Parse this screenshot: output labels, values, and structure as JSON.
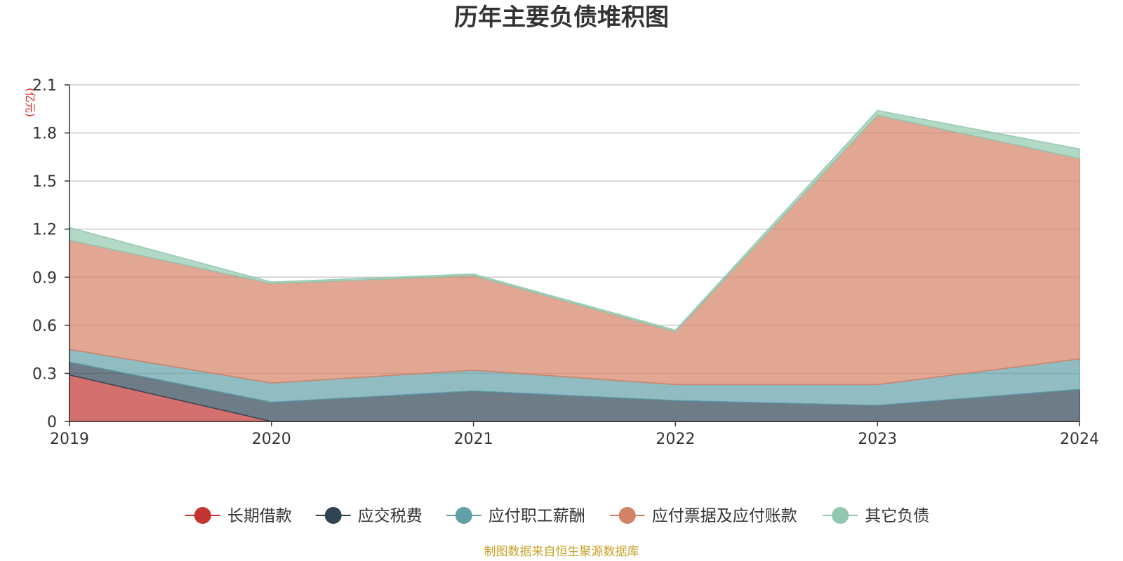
{
  "colors": {
    "title": "#333333",
    "unit": "#e02020",
    "source": "#c8a028",
    "grid": "#cccccc",
    "axis": "#333333"
  },
  "chart_data": {
    "type": "area",
    "stacked": true,
    "title": "历年主要负债堆积图",
    "ylabel": "(亿元)",
    "xlabel": "",
    "categories": [
      "2019",
      "2020",
      "2021",
      "2022",
      "2023",
      "2024"
    ],
    "ylim": [
      0,
      2.1
    ],
    "yticks": [
      "0",
      "0.3",
      "0.6",
      "0.9",
      "1.2",
      "1.5",
      "1.8",
      "2.1"
    ],
    "ytick_values": [
      0,
      0.3,
      0.6,
      0.9,
      1.2,
      1.5,
      1.8,
      2.1
    ],
    "grid": true,
    "legend_position": "bottom",
    "series": [
      {
        "name": "长期借款",
        "color": "#c23531",
        "values": [
          0.29,
          0.0,
          0.0,
          0.0,
          0.0,
          0.0
        ]
      },
      {
        "name": "应交税费",
        "color": "#2f4554",
        "values": [
          0.08,
          0.12,
          0.19,
          0.13,
          0.1,
          0.2
        ]
      },
      {
        "name": "应付职工薪酬",
        "color": "#61a0a8",
        "values": [
          0.08,
          0.12,
          0.13,
          0.1,
          0.13,
          0.19
        ]
      },
      {
        "name": "应付票据及应付账款",
        "color": "#d48265",
        "values": [
          0.68,
          0.62,
          0.59,
          0.33,
          1.68,
          1.25
        ]
      },
      {
        "name": "其它负债",
        "color": "#91c7ae",
        "values": [
          0.08,
          0.01,
          0.01,
          0.01,
          0.03,
          0.06
        ]
      }
    ]
  },
  "source_text": "制图数据来自恒生聚源数据库"
}
